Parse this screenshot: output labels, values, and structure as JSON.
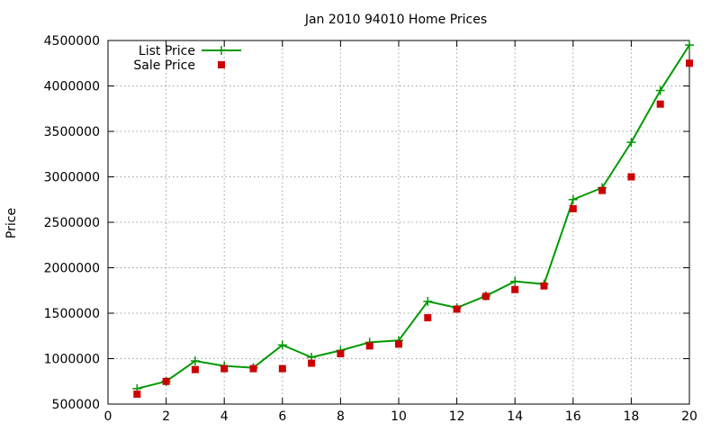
{
  "chart_data": {
    "type": "line",
    "title": "Jan 2010 94010 Home Prices",
    "xlabel": "",
    "ylabel": "Price",
    "xlim": [
      0,
      20
    ],
    "ylim": [
      500000,
      4500000
    ],
    "x_ticks": [
      0,
      2,
      4,
      6,
      8,
      10,
      12,
      14,
      16,
      18,
      20
    ],
    "y_ticks": [
      500000,
      1000000,
      1500000,
      2000000,
      2500000,
      3000000,
      3500000,
      4000000,
      4500000
    ],
    "x_tick_labels": [
      "0",
      "2",
      "4",
      "6",
      "8",
      "10",
      "12",
      "14",
      "16",
      "18",
      "20"
    ],
    "y_tick_labels": [
      "500000",
      "1000000",
      "1500000",
      "2000000",
      "2500000",
      "3000000",
      "3500000",
      "4000000",
      "4500000"
    ],
    "grid": true,
    "legend_position": "top-left",
    "x": [
      1,
      2,
      3,
      4,
      5,
      6,
      7,
      8,
      9,
      10,
      11,
      12,
      13,
      14,
      15,
      16,
      17,
      18,
      19,
      20
    ],
    "series": [
      {
        "name": "List Price",
        "style": "line+cross",
        "color": "#009900",
        "values": [
          670000,
          750000,
          975000,
          920000,
          900000,
          1150000,
          1015000,
          1090000,
          1180000,
          1200000,
          1630000,
          1560000,
          1690000,
          1850000,
          1820000,
          2750000,
          2880000,
          3380000,
          3950000,
          4450000
        ]
      },
      {
        "name": "Sale Price",
        "style": "square",
        "color": "#cc0000",
        "values": [
          610000,
          750000,
          880000,
          890000,
          890000,
          890000,
          950000,
          1055000,
          1140000,
          1160000,
          1450000,
          1545000,
          1685000,
          1760000,
          1800000,
          2650000,
          2850000,
          3000000,
          3800000,
          4250000
        ]
      }
    ]
  }
}
